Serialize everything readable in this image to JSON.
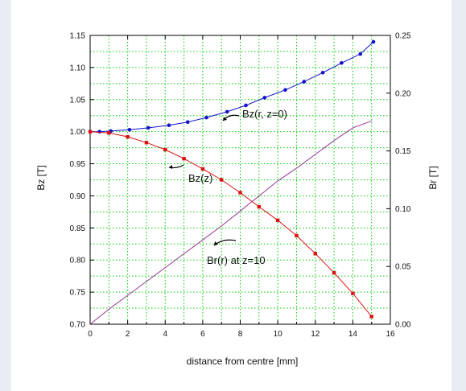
{
  "chart_data": {
    "type": "line",
    "title": "",
    "xlabel": "distance from centre [mm]",
    "ylabel": "Bz [T]",
    "y2label": "Br [T]",
    "xlim": [
      0,
      16
    ],
    "ylim": [
      0.7,
      1.15
    ],
    "y2lim": [
      0.0,
      0.25
    ],
    "x_ticks": [
      "0",
      "2",
      "4",
      "6",
      "8",
      "10",
      "12",
      "14",
      "16"
    ],
    "y_ticks": [
      "0.70",
      "0.75",
      "0.80",
      "0.85",
      "0.90",
      "0.95",
      "1.00",
      "1.05",
      "1.10",
      "1.15"
    ],
    "y2_ticks": [
      "0.00",
      "0.05",
      "0.10",
      "0.15",
      "0.20",
      "0.25"
    ],
    "grid": true,
    "grid_color": "#00cc00",
    "annotations": [
      "Bz(r, z=0)",
      "Bz(z)",
      "Br(r) at z=10"
    ],
    "series": [
      {
        "name": "Bz(r, z=0)",
        "axis": "left",
        "color": "#1111cc",
        "marker": "circle",
        "x": [
          0,
          0.5,
          1.1,
          2.1,
          3.1,
          4.2,
          5.2,
          6.2,
          7.3,
          8.3,
          9.3,
          10.4,
          11.4,
          12.4,
          13.4,
          14.4,
          15.1
        ],
        "y": [
          1.0,
          1.0,
          1.001,
          1.003,
          1.006,
          1.01,
          1.015,
          1.022,
          1.031,
          1.041,
          1.053,
          1.065,
          1.078,
          1.092,
          1.107,
          1.121,
          1.14
        ]
      },
      {
        "name": "Bz(z)",
        "axis": "left",
        "color": "#dd1111",
        "marker": "square",
        "x": [
          0,
          1,
          2,
          3,
          4,
          5,
          6,
          7,
          8,
          9,
          10,
          11,
          12,
          13,
          14,
          15
        ],
        "y": [
          1.0,
          0.998,
          0.992,
          0.983,
          0.972,
          0.958,
          0.942,
          0.925,
          0.905,
          0.883,
          0.862,
          0.838,
          0.81,
          0.78,
          0.748,
          0.712
        ]
      },
      {
        "name": "Br(r) at z=10",
        "axis": "right",
        "color": "#993399",
        "marker": "none",
        "x": [
          0,
          1,
          2,
          3,
          4,
          5,
          6,
          7,
          8,
          9,
          10,
          11,
          12,
          13,
          14,
          15
        ],
        "y": [
          0.0,
          0.013,
          0.025,
          0.037,
          0.049,
          0.061,
          0.073,
          0.085,
          0.098,
          0.111,
          0.124,
          0.135,
          0.147,
          0.159,
          0.17,
          0.176
        ]
      }
    ]
  }
}
